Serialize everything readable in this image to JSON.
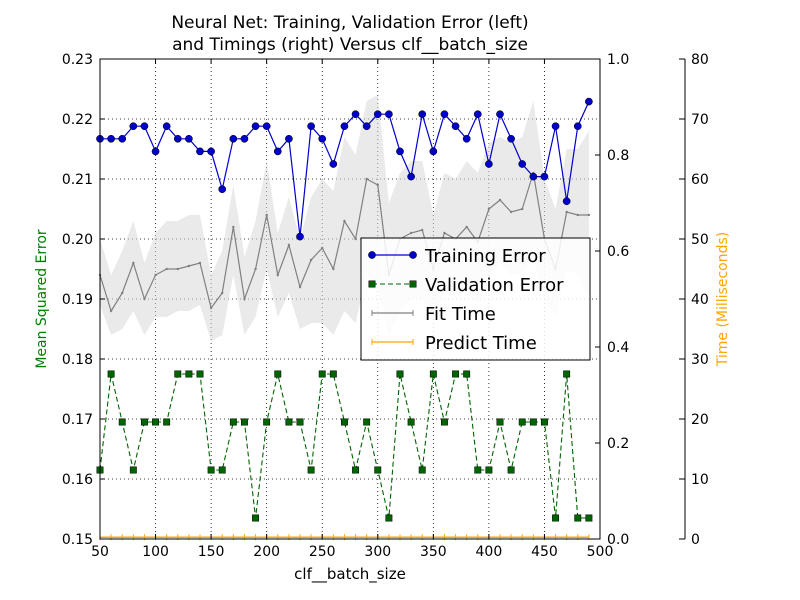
{
  "chart_data": {
    "type": "line",
    "title": "Neural Net: Training, Validation Error (left)\nand Timings (right) Versus clf__batch_size",
    "xlabel": "clf__batch_size",
    "ylabel_left": "Mean Squared Error",
    "ylabel_right": "Time (Milliseconds)",
    "xlim": [
      50,
      500
    ],
    "ylim_left": [
      0.15,
      0.23
    ],
    "ylim_mid": [
      0.0,
      1.0
    ],
    "ylim_right": [
      0,
      80
    ],
    "x_ticks": [
      "50",
      "100",
      "150",
      "200",
      "250",
      "300",
      "350",
      "400",
      "450",
      "500"
    ],
    "y_left_ticks": [
      "0.15",
      "0.16",
      "0.17",
      "0.18",
      "0.19",
      "0.20",
      "0.21",
      "0.22",
      "0.23"
    ],
    "y_mid_ticks": [
      "0.0",
      "0.2",
      "0.4",
      "0.6",
      "0.8",
      "1.0"
    ],
    "y_right_ticks": [
      "0",
      "10",
      "20",
      "30",
      "40",
      "50",
      "60",
      "70",
      "80"
    ],
    "grid": true,
    "legend_position": "center-right",
    "colors": {
      "training": "#0000cc",
      "validation": "#006400",
      "fit": "#808080",
      "predict": "#ffa500",
      "ylabel_left": "#008000",
      "ylabel_right": "#ffa500"
    },
    "x": [
      50,
      60,
      70,
      80,
      90,
      100,
      110,
      120,
      130,
      140,
      150,
      160,
      170,
      180,
      190,
      200,
      210,
      220,
      230,
      240,
      250,
      260,
      270,
      280,
      290,
      300,
      310,
      320,
      330,
      340,
      350,
      360,
      370,
      380,
      390,
      400,
      410,
      420,
      430,
      440,
      450,
      460,
      470,
      480,
      490
    ],
    "series": [
      {
        "name": "Training Error",
        "axis": "left",
        "style": "solid-circle",
        "values": [
          0.2167,
          0.2167,
          0.2167,
          0.2188,
          0.2188,
          0.2146,
          0.2188,
          0.2167,
          0.2167,
          0.2146,
          0.2146,
          0.2083,
          0.2167,
          0.2167,
          0.2188,
          0.2188,
          0.2146,
          0.2167,
          0.2004,
          0.2188,
          0.2167,
          0.2125,
          0.2188,
          0.2208,
          0.2188,
          0.2208,
          0.2208,
          0.2146,
          0.2104,
          0.2208,
          0.2146,
          0.2208,
          0.2188,
          0.2167,
          0.2208,
          0.2125,
          0.2208,
          0.2167,
          0.2125,
          0.2104,
          0.2104,
          0.2188,
          0.2063,
          0.2188,
          0.2229
        ]
      },
      {
        "name": "Validation Error",
        "axis": "left",
        "style": "dashed-square",
        "values": [
          0.1615,
          0.1775,
          0.1695,
          0.1615,
          0.1695,
          0.1695,
          0.1695,
          0.1775,
          0.1775,
          0.1775,
          0.1615,
          0.1615,
          0.1695,
          0.1695,
          0.1535,
          0.1695,
          0.1775,
          0.1695,
          0.1695,
          0.1615,
          0.1775,
          0.1775,
          0.1695,
          0.1615,
          0.1695,
          0.1615,
          0.1535,
          0.1775,
          0.1695,
          0.1615,
          0.1775,
          0.1695,
          0.1775,
          0.1775,
          0.1615,
          0.1615,
          0.1695,
          0.1615,
          0.1695,
          0.1695,
          0.1695,
          0.1535,
          0.1775,
          0.1535,
          0.1535
        ]
      },
      {
        "name": "Fit Time",
        "axis": "right",
        "style": "solid-gray",
        "values": [
          44,
          38,
          41,
          46,
          40,
          44,
          45,
          45,
          45.5,
          46,
          38.5,
          41,
          52,
          40,
          45,
          54,
          44,
          49,
          42,
          46.5,
          48.5,
          45,
          53,
          50,
          60,
          59,
          44,
          50,
          51,
          51.5,
          45,
          51,
          50,
          52,
          49.5,
          55,
          56.5,
          54.5,
          55,
          61,
          50,
          45,
          54.5,
          54,
          54
        ],
        "band_lower": [
          39,
          34,
          35,
          38,
          34,
          37,
          37,
          38,
          38,
          39,
          33,
          34,
          44,
          34,
          37,
          45,
          37,
          41,
          35,
          36,
          36,
          34,
          38,
          36,
          44,
          42,
          34,
          38,
          40,
          40,
          37,
          41,
          40,
          42,
          39,
          44,
          46,
          44,
          44,
          47,
          40,
          37,
          45,
          44,
          40
        ],
        "band_upper": [
          50,
          44,
          48,
          53,
          46,
          51,
          53,
          53,
          54,
          54,
          44,
          48,
          59,
          47,
          53,
          63,
          51,
          57,
          50,
          57,
          60,
          58,
          67,
          64,
          73,
          74,
          56,
          61,
          63,
          63,
          54,
          61,
          60,
          63,
          61,
          66,
          67,
          66,
          67,
          73,
          60,
          55,
          65,
          65,
          68
        ]
      },
      {
        "name": "Predict Time",
        "axis": "right",
        "style": "solid-orange",
        "values": [
          0.3,
          0.3,
          0.3,
          0.3,
          0.3,
          0.3,
          0.3,
          0.3,
          0.3,
          0.3,
          0.3,
          0.3,
          0.3,
          0.3,
          0.3,
          0.3,
          0.3,
          0.3,
          0.3,
          0.3,
          0.3,
          0.3,
          0.3,
          0.3,
          0.3,
          0.3,
          0.3,
          0.3,
          0.3,
          0.3,
          0.3,
          0.3,
          0.3,
          0.3,
          0.3,
          0.3,
          0.3,
          0.3,
          0.3,
          0.3,
          0.3,
          0.3,
          0.3,
          0.3,
          0.3
        ]
      }
    ]
  }
}
